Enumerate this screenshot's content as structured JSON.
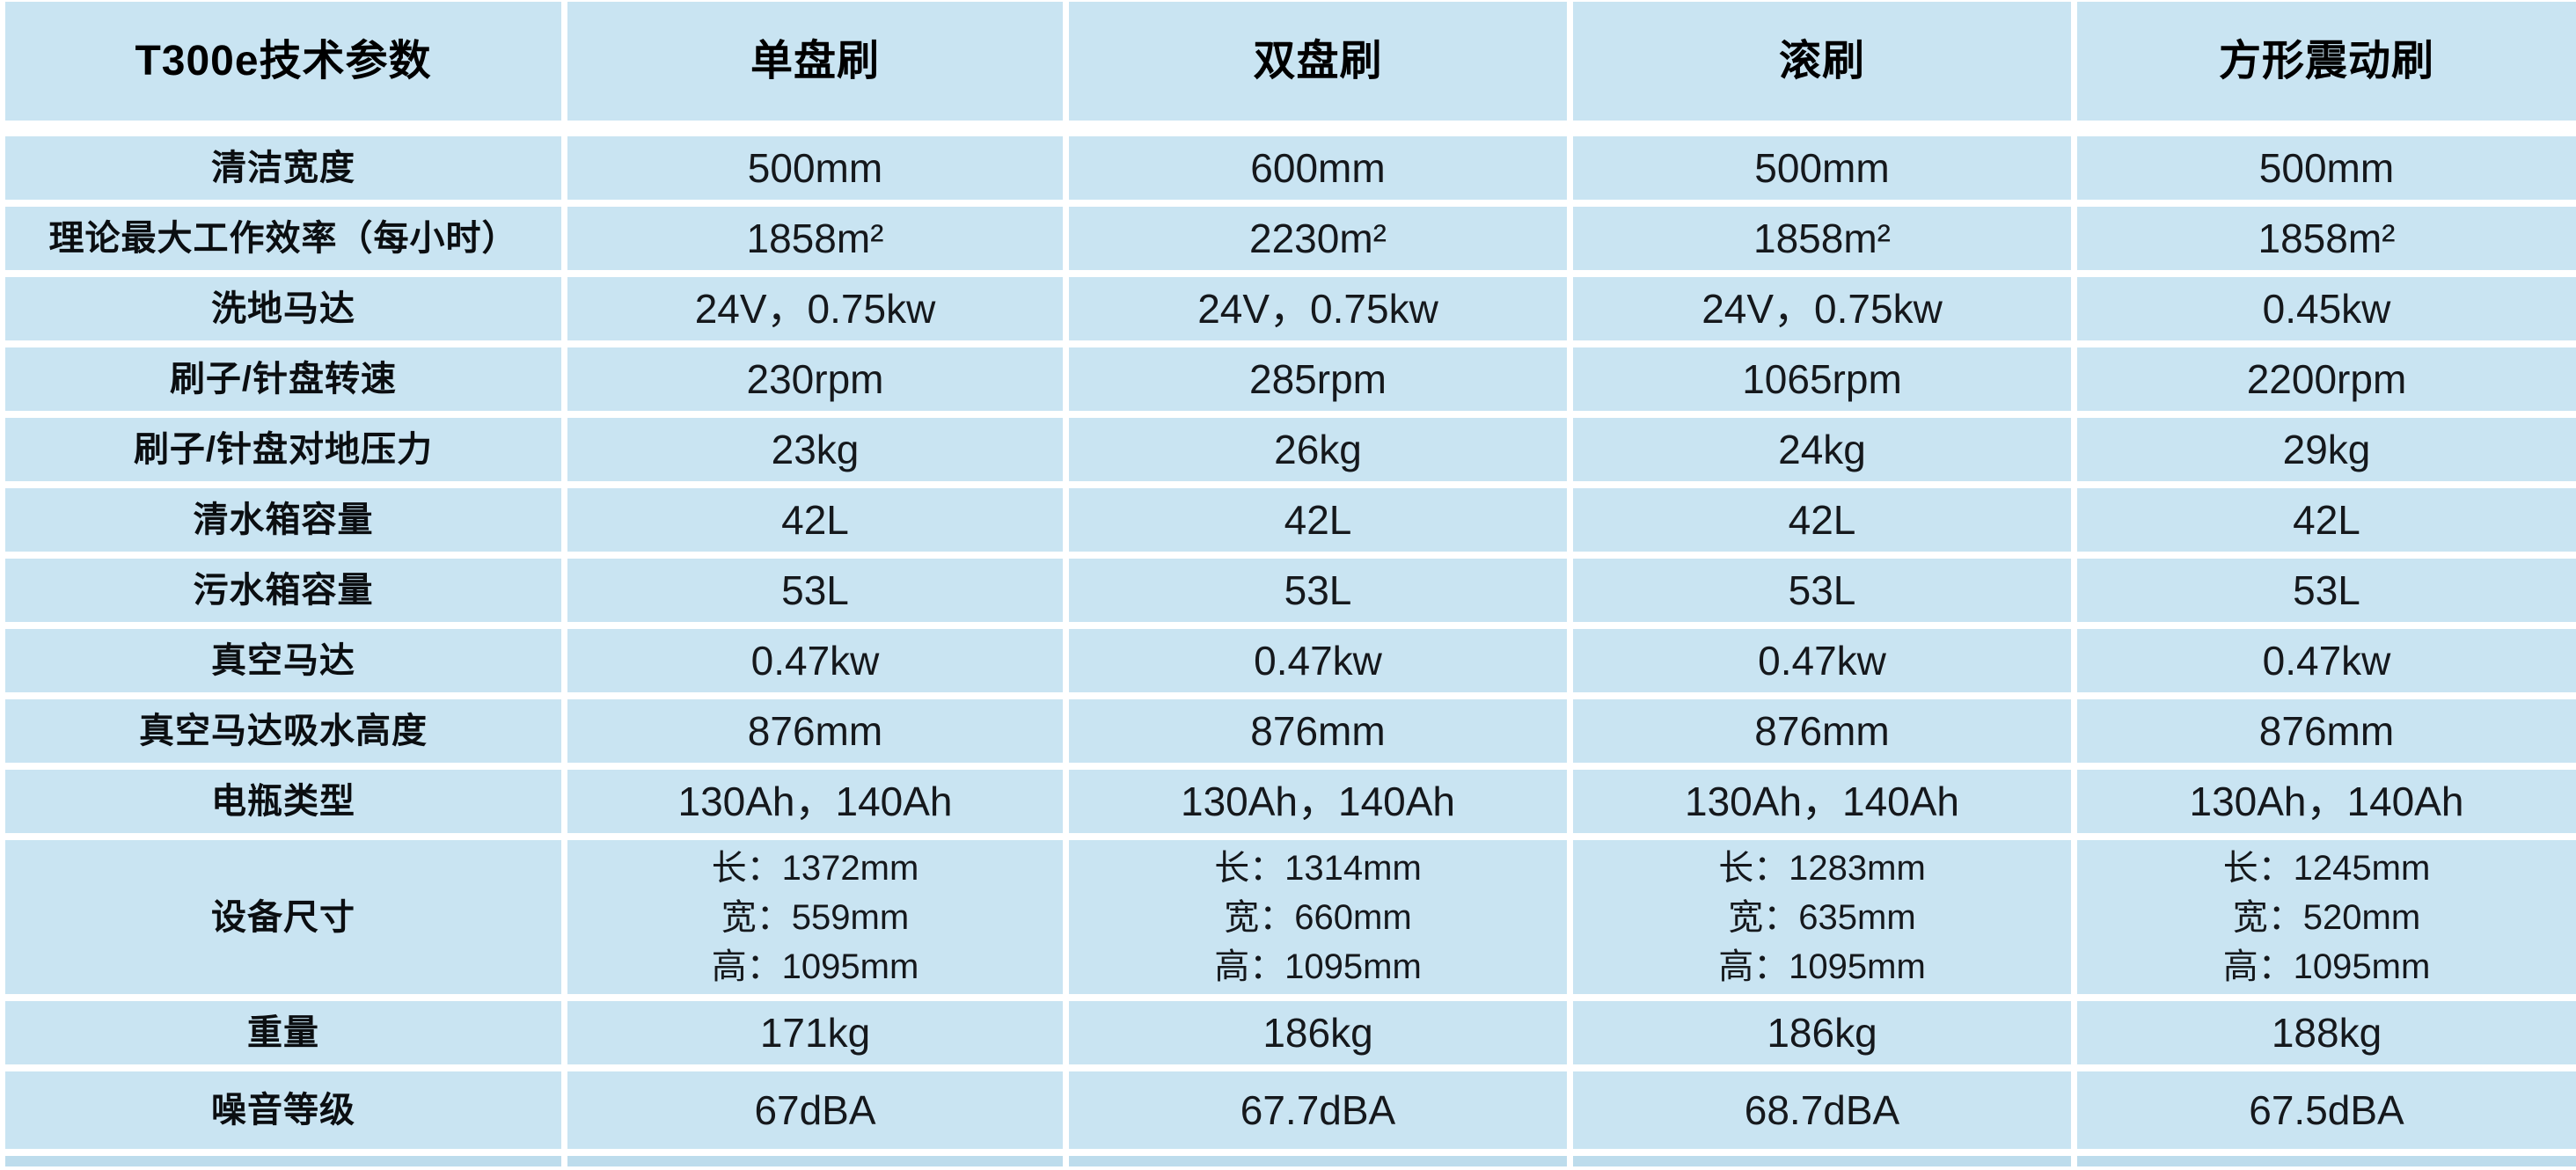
{
  "table": {
    "title": "T300e技术参数",
    "columns": [
      "T300e技术参数",
      "单盘刷",
      "双盘刷",
      "滚刷",
      "方形震动刷"
    ],
    "rows": [
      {
        "label": "清洁宽度",
        "values": [
          "500mm",
          "600mm",
          "500mm",
          "500mm"
        ]
      },
      {
        "label": "理论最大工作效率（每小时）",
        "values": [
          "1858m²",
          "2230m²",
          "1858m²",
          "1858m²"
        ]
      },
      {
        "label": "洗地马达",
        "values": [
          "24V，0.75kw",
          "24V，0.75kw",
          "24V，0.75kw",
          "0.45kw"
        ]
      },
      {
        "label": "刷子/针盘转速",
        "values": [
          "230rpm",
          "285rpm",
          "1065rpm",
          "2200rpm"
        ]
      },
      {
        "label": "刷子/针盘对地压力",
        "values": [
          "23kg",
          "26kg",
          "24kg",
          "29kg"
        ]
      },
      {
        "label": "清水箱容量",
        "values": [
          "42L",
          "42L",
          "42L",
          "42L"
        ]
      },
      {
        "label": "污水箱容量",
        "values": [
          "53L",
          "53L",
          "53L",
          "53L"
        ]
      },
      {
        "label": "真空马达",
        "values": [
          "0.47kw",
          "0.47kw",
          "0.47kw",
          "0.47kw"
        ]
      },
      {
        "label": "真空马达吸水高度",
        "values": [
          "876mm",
          "876mm",
          "876mm",
          "876mm"
        ]
      },
      {
        "label": "电瓶类型",
        "values": [
          "130Ah，140Ah",
          "130Ah，140Ah",
          "130Ah，140Ah",
          "130Ah，140Ah"
        ]
      },
      {
        "label": "设备尺寸",
        "values": [
          [
            "长：1372mm",
            "宽：559mm",
            "高：1095mm"
          ],
          [
            "长：1314mm",
            "宽：660mm",
            "高：1095mm"
          ],
          [
            "长：1283mm",
            "宽：635mm",
            "高：1095mm"
          ],
          [
            "长：1245mm",
            "宽：520mm",
            "高：1095mm"
          ]
        ]
      },
      {
        "label": "重量",
        "values": [
          "171kg",
          "186kg",
          "186kg",
          "188kg"
        ]
      },
      {
        "label": "噪音等级",
        "values": [
          "67dBA",
          "67.7dBA",
          "68.7dBA",
          "67.5dBA"
        ]
      }
    ],
    "colors": {
      "cell_background": "#c9e4f2",
      "separator": "#ffffff",
      "header_text": "#000000",
      "value_text": "#15181c",
      "bottom_strip": "#bddcec"
    }
  }
}
